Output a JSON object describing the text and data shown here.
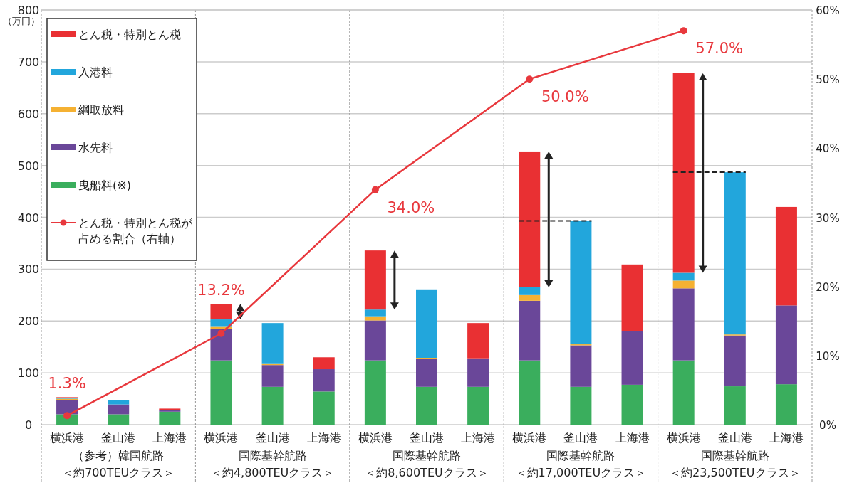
{
  "chart_data": {
    "type": "bar",
    "stacked": true,
    "ylabel": "（万円）",
    "categories": [
      "横浜港",
      "釜山港",
      "上海港",
      "横浜港",
      "釜山港",
      "上海港",
      "横浜港",
      "釜山港",
      "上海港",
      "横浜港",
      "釜山港",
      "上海港",
      "横浜港",
      "釜山港",
      "上海港"
    ],
    "series": [
      {
        "name": "曳船料(※)",
        "color": "#3aae5d",
        "values": [
          20,
          20,
          25,
          124,
          73,
          64,
          124,
          73,
          73,
          124,
          73,
          77,
          124,
          74,
          78
        ]
      },
      {
        "name": "水先料",
        "color": "#6a4799",
        "values": [
          28,
          19,
          3,
          61,
          42,
          43,
          77,
          54,
          55,
          115,
          80,
          104,
          139,
          98,
          152
        ]
      },
      {
        "name": "綱取放料",
        "color": "#f5b132",
        "values": [
          2,
          0,
          0,
          5,
          2,
          0,
          8,
          2,
          0,
          11,
          2,
          0,
          15,
          2,
          0
        ]
      },
      {
        "name": "入港料",
        "color": "#22a6dc",
        "values": [
          2,
          9,
          0,
          13,
          79,
          0,
          13,
          132,
          0,
          15,
          238,
          0,
          15,
          313,
          0
        ]
      },
      {
        "name": "とん税・特別とん税",
        "color": "#e93033",
        "values": [
          1,
          0,
          3,
          30,
          0,
          23,
          114,
          0,
          68,
          262,
          0,
          128,
          385,
          0,
          190
        ]
      },
      {
        "name": "とん税・特別とん税が占める割合（右軸）",
        "type": "line",
        "axis": "y2",
        "color": "#e8383d",
        "marker": "circle",
        "values": [
          1.3,
          null,
          null,
          13.2,
          null,
          null,
          34.0,
          null,
          null,
          50.0,
          null,
          null,
          57.0,
          null,
          null
        ],
        "value_labels": [
          "1.3%",
          null,
          null,
          "13.2%",
          null,
          null,
          "34.0%",
          null,
          null,
          "50.0%",
          null,
          null,
          "57.0%",
          null,
          null
        ]
      }
    ],
    "ylim": [
      0,
      800
    ],
    "yticks": [
      0,
      100,
      200,
      300,
      400,
      500,
      600,
      700,
      800
    ],
    "y2lim": [
      0,
      60
    ],
    "y2ticks": [
      {
        "value": 0,
        "label": "0%"
      },
      {
        "value": 10,
        "label": "10%"
      },
      {
        "value": 20,
        "label": "20%"
      },
      {
        "value": 30,
        "label": "30%"
      },
      {
        "value": 40,
        "label": "40%"
      },
      {
        "value": 50,
        "label": "50%"
      },
      {
        "value": 60,
        "label": "60%"
      }
    ],
    "grid": "y",
    "legend": "top left",
    "annotations": [
      "（参考）韓国航路",
      "＜約700TEUクラス＞",
      "国際基幹航路",
      "＜約4,800TEUクラス＞",
      "国際基幹航路",
      "＜約8,600TEUクラス＞",
      "国際基幹航路",
      "＜約17,000TEUクラス＞",
      "国際基幹航路",
      "＜約23,500TEUクラス＞"
    ]
  }
}
